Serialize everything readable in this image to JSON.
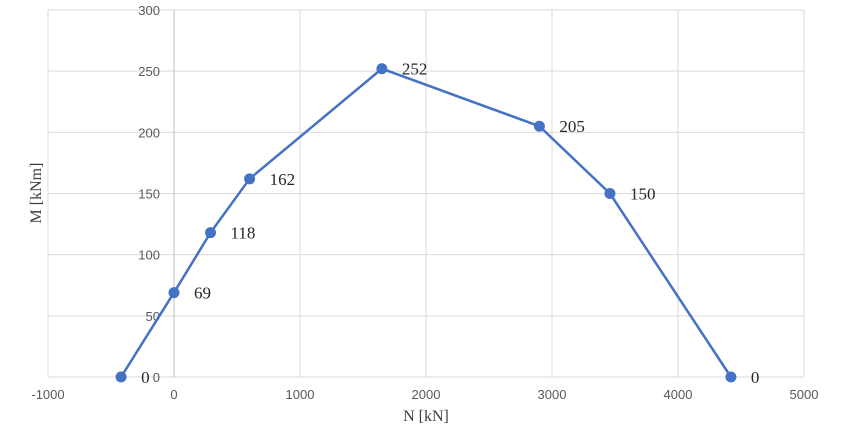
{
  "chart_data": {
    "type": "line",
    "title": "",
    "xlabel": "N [kN]",
    "ylabel": "M [kNm]",
    "xlim": [
      -1000,
      5000
    ],
    "ylim": [
      0,
      300
    ],
    "x_ticks": [
      -1000,
      0,
      1000,
      2000,
      3000,
      4000,
      5000
    ],
    "y_ticks": [
      0,
      50,
      100,
      150,
      200,
      250,
      300
    ],
    "grid": true,
    "legend": "none",
    "series": [
      {
        "color": "#4472c4",
        "points": [
          {
            "x": -420,
            "y": 0,
            "label": "0"
          },
          {
            "x": 0,
            "y": 69,
            "label": "69"
          },
          {
            "x": 290,
            "y": 118,
            "label": "118"
          },
          {
            "x": 600,
            "y": 162,
            "label": "162"
          },
          {
            "x": 1650,
            "y": 252,
            "label": "252"
          },
          {
            "x": 2900,
            "y": 205,
            "label": "205"
          },
          {
            "x": 3460,
            "y": 150,
            "label": "150"
          },
          {
            "x": 4420,
            "y": 0,
            "label": "0"
          }
        ]
      }
    ]
  }
}
